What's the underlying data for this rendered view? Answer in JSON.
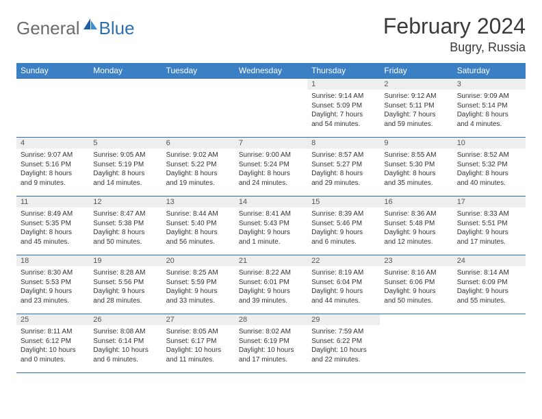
{
  "brand": {
    "part1": "General",
    "part2": "Blue"
  },
  "header": {
    "month_title": "February 2024",
    "location": "Bugry, Russia"
  },
  "colors": {
    "header_bar": "#3b7fc4",
    "border": "#2f6fb0",
    "daynum_bg": "#eeeeee",
    "text": "#333333",
    "logo_gray": "#6b6b6b",
    "logo_blue": "#2f6fb0"
  },
  "day_headers": [
    "Sunday",
    "Monday",
    "Tuesday",
    "Wednesday",
    "Thursday",
    "Friday",
    "Saturday"
  ],
  "weeks": [
    [
      {
        "blank": true
      },
      {
        "blank": true
      },
      {
        "blank": true
      },
      {
        "blank": true
      },
      {
        "n": "1",
        "sr": "Sunrise: 9:14 AM",
        "ss": "Sunset: 5:09 PM",
        "dl1": "Daylight: 7 hours",
        "dl2": "and 54 minutes."
      },
      {
        "n": "2",
        "sr": "Sunrise: 9:12 AM",
        "ss": "Sunset: 5:11 PM",
        "dl1": "Daylight: 7 hours",
        "dl2": "and 59 minutes."
      },
      {
        "n": "3",
        "sr": "Sunrise: 9:09 AM",
        "ss": "Sunset: 5:14 PM",
        "dl1": "Daylight: 8 hours",
        "dl2": "and 4 minutes."
      }
    ],
    [
      {
        "n": "4",
        "sr": "Sunrise: 9:07 AM",
        "ss": "Sunset: 5:16 PM",
        "dl1": "Daylight: 8 hours",
        "dl2": "and 9 minutes."
      },
      {
        "n": "5",
        "sr": "Sunrise: 9:05 AM",
        "ss": "Sunset: 5:19 PM",
        "dl1": "Daylight: 8 hours",
        "dl2": "and 14 minutes."
      },
      {
        "n": "6",
        "sr": "Sunrise: 9:02 AM",
        "ss": "Sunset: 5:22 PM",
        "dl1": "Daylight: 8 hours",
        "dl2": "and 19 minutes."
      },
      {
        "n": "7",
        "sr": "Sunrise: 9:00 AM",
        "ss": "Sunset: 5:24 PM",
        "dl1": "Daylight: 8 hours",
        "dl2": "and 24 minutes."
      },
      {
        "n": "8",
        "sr": "Sunrise: 8:57 AM",
        "ss": "Sunset: 5:27 PM",
        "dl1": "Daylight: 8 hours",
        "dl2": "and 29 minutes."
      },
      {
        "n": "9",
        "sr": "Sunrise: 8:55 AM",
        "ss": "Sunset: 5:30 PM",
        "dl1": "Daylight: 8 hours",
        "dl2": "and 35 minutes."
      },
      {
        "n": "10",
        "sr": "Sunrise: 8:52 AM",
        "ss": "Sunset: 5:32 PM",
        "dl1": "Daylight: 8 hours",
        "dl2": "and 40 minutes."
      }
    ],
    [
      {
        "n": "11",
        "sr": "Sunrise: 8:49 AM",
        "ss": "Sunset: 5:35 PM",
        "dl1": "Daylight: 8 hours",
        "dl2": "and 45 minutes."
      },
      {
        "n": "12",
        "sr": "Sunrise: 8:47 AM",
        "ss": "Sunset: 5:38 PM",
        "dl1": "Daylight: 8 hours",
        "dl2": "and 50 minutes."
      },
      {
        "n": "13",
        "sr": "Sunrise: 8:44 AM",
        "ss": "Sunset: 5:40 PM",
        "dl1": "Daylight: 8 hours",
        "dl2": "and 56 minutes."
      },
      {
        "n": "14",
        "sr": "Sunrise: 8:41 AM",
        "ss": "Sunset: 5:43 PM",
        "dl1": "Daylight: 9 hours",
        "dl2": "and 1 minute."
      },
      {
        "n": "15",
        "sr": "Sunrise: 8:39 AM",
        "ss": "Sunset: 5:46 PM",
        "dl1": "Daylight: 9 hours",
        "dl2": "and 6 minutes."
      },
      {
        "n": "16",
        "sr": "Sunrise: 8:36 AM",
        "ss": "Sunset: 5:48 PM",
        "dl1": "Daylight: 9 hours",
        "dl2": "and 12 minutes."
      },
      {
        "n": "17",
        "sr": "Sunrise: 8:33 AM",
        "ss": "Sunset: 5:51 PM",
        "dl1": "Daylight: 9 hours",
        "dl2": "and 17 minutes."
      }
    ],
    [
      {
        "n": "18",
        "sr": "Sunrise: 8:30 AM",
        "ss": "Sunset: 5:53 PM",
        "dl1": "Daylight: 9 hours",
        "dl2": "and 23 minutes."
      },
      {
        "n": "19",
        "sr": "Sunrise: 8:28 AM",
        "ss": "Sunset: 5:56 PM",
        "dl1": "Daylight: 9 hours",
        "dl2": "and 28 minutes."
      },
      {
        "n": "20",
        "sr": "Sunrise: 8:25 AM",
        "ss": "Sunset: 5:59 PM",
        "dl1": "Daylight: 9 hours",
        "dl2": "and 33 minutes."
      },
      {
        "n": "21",
        "sr": "Sunrise: 8:22 AM",
        "ss": "Sunset: 6:01 PM",
        "dl1": "Daylight: 9 hours",
        "dl2": "and 39 minutes."
      },
      {
        "n": "22",
        "sr": "Sunrise: 8:19 AM",
        "ss": "Sunset: 6:04 PM",
        "dl1": "Daylight: 9 hours",
        "dl2": "and 44 minutes."
      },
      {
        "n": "23",
        "sr": "Sunrise: 8:16 AM",
        "ss": "Sunset: 6:06 PM",
        "dl1": "Daylight: 9 hours",
        "dl2": "and 50 minutes."
      },
      {
        "n": "24",
        "sr": "Sunrise: 8:14 AM",
        "ss": "Sunset: 6:09 PM",
        "dl1": "Daylight: 9 hours",
        "dl2": "and 55 minutes."
      }
    ],
    [
      {
        "n": "25",
        "sr": "Sunrise: 8:11 AM",
        "ss": "Sunset: 6:12 PM",
        "dl1": "Daylight: 10 hours",
        "dl2": "and 0 minutes."
      },
      {
        "n": "26",
        "sr": "Sunrise: 8:08 AM",
        "ss": "Sunset: 6:14 PM",
        "dl1": "Daylight: 10 hours",
        "dl2": "and 6 minutes."
      },
      {
        "n": "27",
        "sr": "Sunrise: 8:05 AM",
        "ss": "Sunset: 6:17 PM",
        "dl1": "Daylight: 10 hours",
        "dl2": "and 11 minutes."
      },
      {
        "n": "28",
        "sr": "Sunrise: 8:02 AM",
        "ss": "Sunset: 6:19 PM",
        "dl1": "Daylight: 10 hours",
        "dl2": "and 17 minutes."
      },
      {
        "n": "29",
        "sr": "Sunrise: 7:59 AM",
        "ss": "Sunset: 6:22 PM",
        "dl1": "Daylight: 10 hours",
        "dl2": "and 22 minutes."
      },
      {
        "blank": true
      },
      {
        "blank": true
      }
    ]
  ]
}
